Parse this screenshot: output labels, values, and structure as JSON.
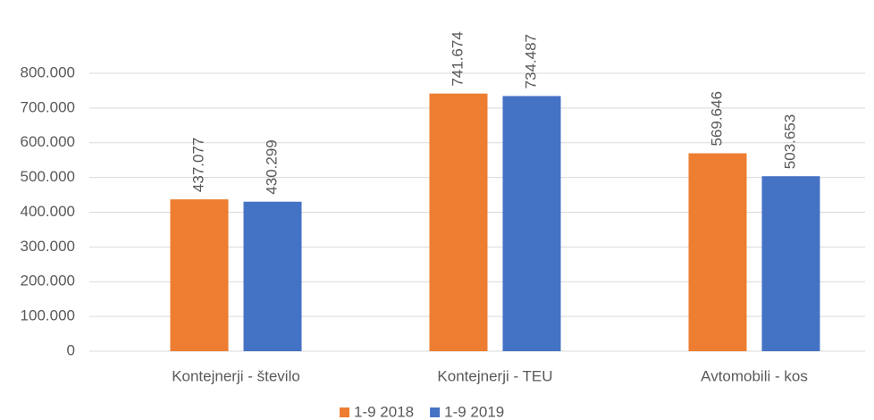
{
  "chart_data": {
    "type": "bar",
    "categories": [
      "Kontejnerji - število",
      "Kontejnerji - TEU",
      "Avtomobili - kos"
    ],
    "series": [
      {
        "name": "1-9 2018",
        "color": "#ed7d31",
        "values": [
          437077,
          741674,
          569646
        ],
        "value_labels": [
          "437.077",
          "741.674",
          "569.646"
        ]
      },
      {
        "name": "1-9 2019",
        "color": "#4472c4",
        "values": [
          430299,
          734487,
          503653
        ],
        "value_labels": [
          "430.299",
          "734.487",
          "503.653"
        ]
      }
    ],
    "ylim": [
      0,
      800000
    ],
    "yticks": [
      0,
      {
        "value": 100000,
        "label": "100.000"
      },
      {
        "value": 200000,
        "label": "200.000"
      },
      {
        "value": 300000,
        "label": "300.000"
      },
      {
        "value": 400000,
        "label": "400.000"
      },
      {
        "value": 500000,
        "label": "500.000"
      },
      {
        "value": 600000,
        "label": "600.000"
      },
      {
        "value": 700000,
        "label": "700.000"
      },
      {
        "value": 800000,
        "label": "800.000"
      }
    ],
    "grid": true,
    "legend": "bottom"
  }
}
